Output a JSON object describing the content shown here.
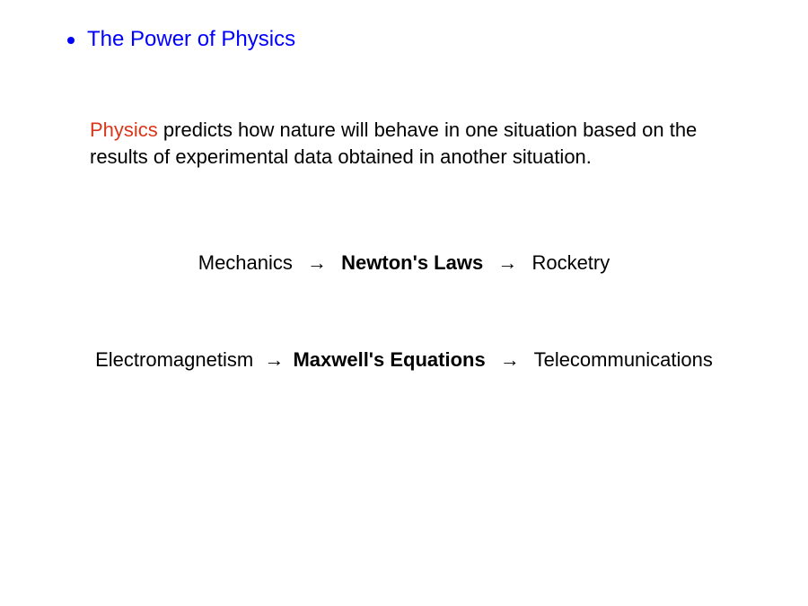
{
  "colors": {
    "title_blue": "#0000ff",
    "bullet_blue": "#0000ff",
    "highlight_red": "#d9361a",
    "body_text": "#000000",
    "background": "#ffffff"
  },
  "title": {
    "text": "The Power of Physics",
    "fontsize": 24
  },
  "paragraph": {
    "highlight_word": "Physics",
    "rest": " predicts how nature will behave in one situation based on the results of experimental data obtained in another situation.",
    "fontsize": 22
  },
  "arrow_glyph": "→",
  "flows": [
    {
      "left": "Mechanics",
      "center": "Newton's Laws",
      "right": "Rocketry",
      "center_bold": true,
      "spacing_left": "  ",
      "spacing_right": "  "
    },
    {
      "left": "Electromagnetism",
      "center": "Maxwell's Equations",
      "right": "Telecommunications",
      "center_bold": true,
      "spacing_left": "",
      "spacing_right": " "
    }
  ]
}
